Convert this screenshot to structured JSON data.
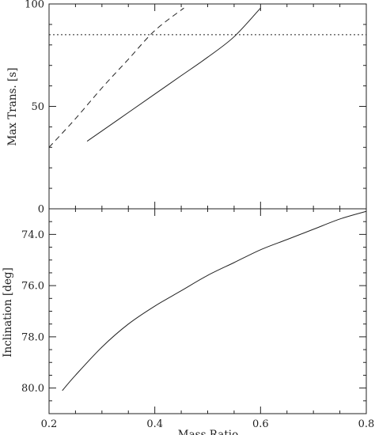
{
  "chart_data": [
    {
      "type": "line",
      "panel": "top",
      "ylabel": "Max Trans. [s]",
      "xlim": [
        0.2,
        0.8
      ],
      "ylim": [
        0,
        100
      ],
      "yticks": [
        0,
        50,
        100
      ],
      "ytick_labels": [
        "0",
        "50",
        "100"
      ],
      "xticks": [
        0.2,
        0.4,
        0.6,
        0.8
      ],
      "grid": false,
      "series": [
        {
          "style": "solid",
          "x": [
            0.272,
            0.3,
            0.35,
            0.4,
            0.45,
            0.5,
            0.55,
            0.6
          ],
          "y": [
            33,
            38,
            47,
            56,
            65,
            74,
            84,
            98
          ]
        },
        {
          "style": "dashed",
          "x": [
            0.2,
            0.25,
            0.3,
            0.35,
            0.4,
            0.455
          ],
          "y": [
            30,
            44,
            59,
            73,
            87,
            98
          ]
        },
        {
          "style": "dotted",
          "x": [
            0.2,
            0.8
          ],
          "y": [
            85,
            85
          ]
        }
      ]
    },
    {
      "type": "line",
      "panel": "bottom",
      "xlabel": "Mass Ratio",
      "ylabel": "Inclination [deg]",
      "xlim": [
        0.2,
        0.8
      ],
      "ylim": [
        81.0,
        73.0
      ],
      "y_inverted": true,
      "yticks": [
        74.0,
        76.0,
        78.0,
        80.0
      ],
      "ytick_labels": [
        "74.0",
        "76.0",
        "78.0",
        "80.0"
      ],
      "xticks": [
        0.2,
        0.4,
        0.6,
        0.8
      ],
      "xtick_labels": [
        "0.2",
        "0.4",
        "0.6",
        "0.8"
      ],
      "grid": false,
      "series": [
        {
          "style": "solid",
          "x": [
            0.225,
            0.25,
            0.3,
            0.35,
            0.4,
            0.45,
            0.5,
            0.55,
            0.6,
            0.65,
            0.7,
            0.75,
            0.8
          ],
          "y": [
            80.1,
            79.5,
            78.4,
            77.5,
            76.8,
            76.2,
            75.6,
            75.1,
            74.6,
            74.2,
            73.8,
            73.4,
            73.1
          ]
        }
      ]
    }
  ]
}
